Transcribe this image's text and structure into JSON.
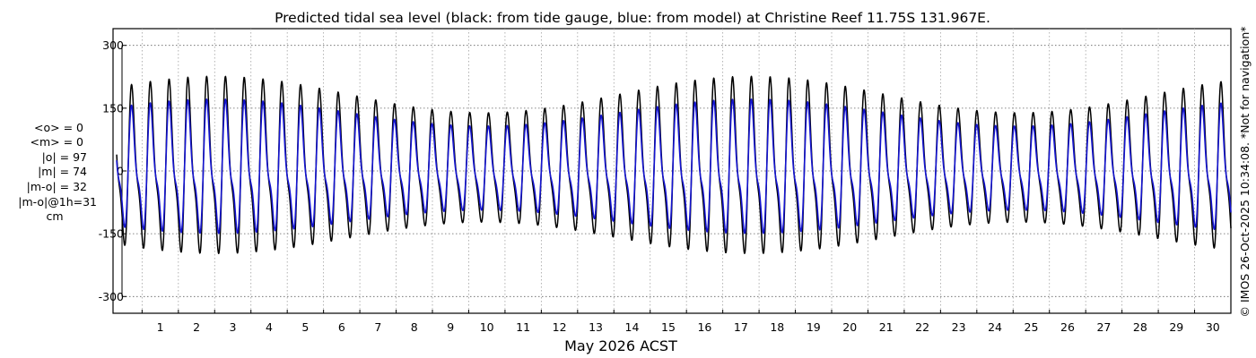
{
  "chart_data": {
    "type": "line",
    "title": "Predicted tidal sea level (black: from tide gauge, blue: from model) at Christine Reef 11.75S 131.967E.",
    "xlabel": "May 2026 ACST",
    "ylabel": "",
    "x_ticks": [
      "1",
      "2",
      "3",
      "4",
      "5",
      "6",
      "7",
      "8",
      "9",
      "10",
      "11",
      "12",
      "13",
      "14",
      "15",
      "16",
      "17",
      "18",
      "19",
      "20",
      "21",
      "22",
      "23",
      "24",
      "25",
      "26",
      "27",
      "28",
      "29",
      "30"
    ],
    "y_ticks": [
      300,
      150,
      0,
      -150,
      -300
    ],
    "xlim_days": [
      0.2,
      31.0
    ],
    "ylim": [
      -340,
      340
    ],
    "grid": true,
    "series": [
      {
        "name": "tide gauge",
        "color": "#000000",
        "params": {
          "tide_range": [
            0.3,
            31.0
          ],
          "step_days": 0.04,
          "M2_period_h": 12.4206,
          "N_period_d": 14.765,
          "A_base": 118,
          "A_spring": 65,
          "S_base": 32,
          "S_spring": 30,
          "offset": -32,
          "peak_day": 17.8
        }
      },
      {
        "name": "model",
        "color": "#1414d0",
        "params": {
          "tide_range": [
            0.3,
            31.0
          ],
          "step_days": 0.04,
          "M2_period_h": 12.4206,
          "N_period_d": 14.765,
          "A_base": 88,
          "A_spring": 48,
          "S_base": 28,
          "S_spring": 22,
          "offset": -27,
          "peak_day": 17.8
        }
      }
    ]
  },
  "stats": {
    "lines": [
      "<o> = 0",
      "<m> = 0",
      "|o| = 97",
      "|m| = 74",
      "|m-o| = 32",
      "|m-o|@1h=31",
      "cm"
    ]
  },
  "watermark": "© IMOS 26-Oct-2025 10:34:08. *Not for navigation*"
}
